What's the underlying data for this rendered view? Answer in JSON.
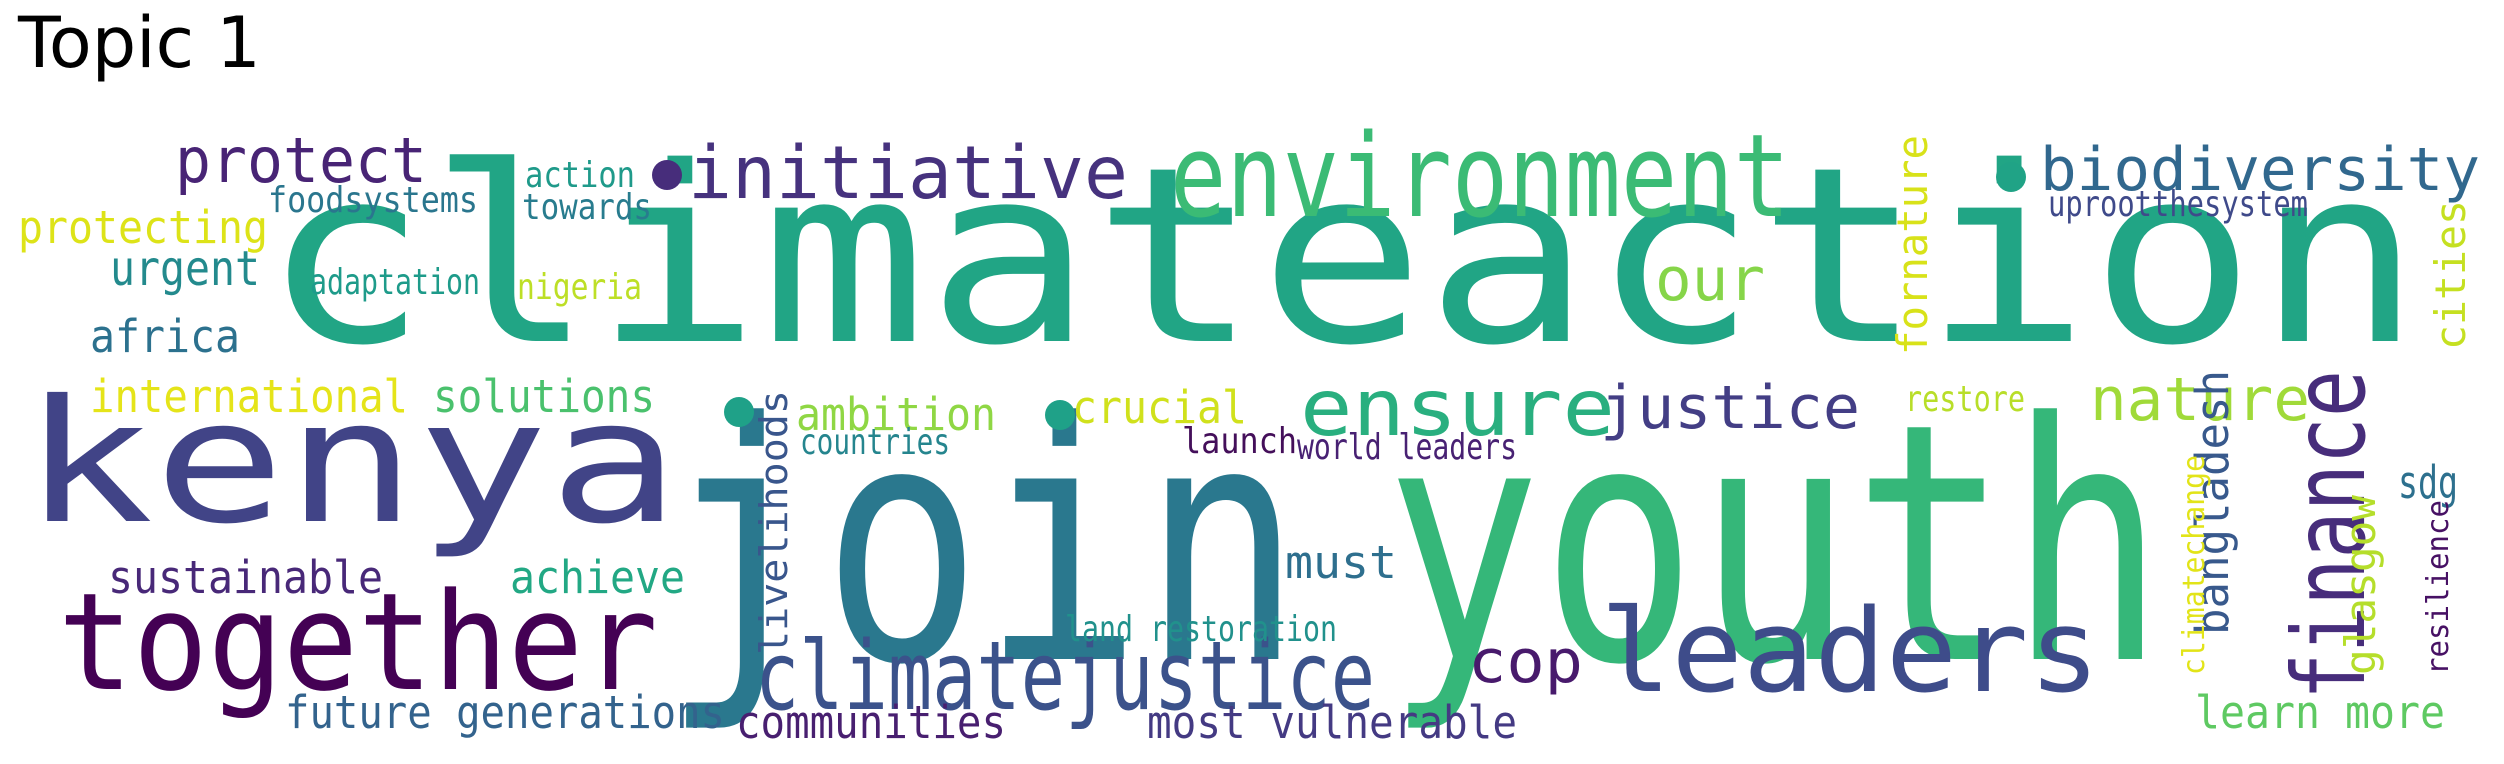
{
  "title": "Topic 1",
  "words": [
    {
      "text": "climateaction",
      "color": "#21a585"
    },
    {
      "text": "join",
      "color": "#2a788e"
    },
    {
      "text": "youth",
      "color": "#35b779"
    },
    {
      "text": "kenya",
      "color": "#414487"
    },
    {
      "text": "together",
      "color": "#440154"
    },
    {
      "text": "leaders",
      "color": "#3e4c8a"
    },
    {
      "text": "environment",
      "color": "#3bbb75"
    },
    {
      "text": "initiative",
      "color": "#46327e"
    },
    {
      "text": "biodiversity",
      "color": "#31688e"
    },
    {
      "text": "protect",
      "color": "#482475"
    },
    {
      "text": "climatejustice",
      "color": "#3b528b"
    },
    {
      "text": "ensure",
      "color": "#29af7f"
    },
    {
      "text": "justice",
      "color": "#433e85"
    },
    {
      "text": "finance",
      "color": "#472d7b"
    },
    {
      "text": "nature",
      "color": "#a0da39"
    },
    {
      "text": "cop",
      "color": "#481a6c"
    },
    {
      "text": "our",
      "color": "#86d549"
    },
    {
      "text": "protecting",
      "color": "#dde318"
    },
    {
      "text": "urgent",
      "color": "#238a8d"
    },
    {
      "text": "africa",
      "color": "#2c718e"
    },
    {
      "text": "international",
      "color": "#e5e419"
    },
    {
      "text": "solutions",
      "color": "#4ac16d"
    },
    {
      "text": "sustainable",
      "color": "#482878"
    },
    {
      "text": "achieve",
      "color": "#22a884"
    },
    {
      "text": "future generations",
      "color": "#33638d"
    },
    {
      "text": "communities",
      "color": "#481f70"
    },
    {
      "text": "most vulnerable",
      "color": "#443a83"
    },
    {
      "text": "learn more",
      "color": "#5ec962"
    },
    {
      "text": "ambition",
      "color": "#8fd744"
    },
    {
      "text": "crucial",
      "color": "#d0e11c"
    },
    {
      "text": "livelihoods",
      "color": "#39568c"
    },
    {
      "text": "must",
      "color": "#2e6f8e"
    },
    {
      "text": "bangladesh",
      "color": "#38598c"
    },
    {
      "text": "sdg",
      "color": "#2d708e"
    },
    {
      "text": "glasgow",
      "color": "#b5de2b"
    },
    {
      "text": "resilience",
      "color": "#471164"
    },
    {
      "text": "climatechange",
      "color": "#e2e418"
    },
    {
      "text": "fornature",
      "color": "#d8e219"
    },
    {
      "text": "cities",
      "color": "#c5e021"
    },
    {
      "text": "action",
      "color": "#1f9a8a"
    },
    {
      "text": "foodsystems",
      "color": "#2a768e"
    },
    {
      "text": "towards",
      "color": "#287c8e"
    },
    {
      "text": "adaptation",
      "color": "#1e9b8a"
    },
    {
      "text": "nigeria",
      "color": "#bddf26"
    },
    {
      "text": "countries",
      "color": "#25858e"
    },
    {
      "text": "launch",
      "color": "#440f5a"
    },
    {
      "text": "world leaders",
      "color": "#482173"
    },
    {
      "text": "land restoration",
      "color": "#21918c"
    },
    {
      "text": "restore",
      "color": "#b8de29"
    },
    {
      "text": "uprootthesystem",
      "color": "#3f4a8a"
    }
  ],
  "dots": [
    {
      "color": "#472d7b"
    },
    {
      "color": "#20a386"
    },
    {
      "color": "#1fa188"
    },
    {
      "color": "#1fa188"
    }
  ]
}
